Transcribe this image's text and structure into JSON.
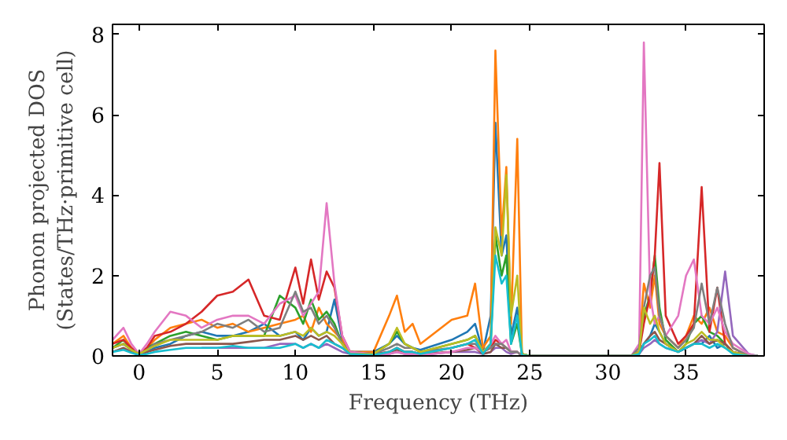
{
  "chart_data": {
    "type": "line",
    "xlabel": "Frequency (THz)",
    "ylabel": "Phonon projected DOS\n(States/THz·primitive cell)",
    "xlim": [
      -1.7,
      40
    ],
    "ylim": [
      0,
      8.25
    ],
    "xticks": [
      0,
      5,
      10,
      15,
      20,
      25,
      30,
      35
    ],
    "yticks": [
      0,
      2,
      4,
      6,
      8
    ],
    "grid": false,
    "x": [
      -1.7,
      -1,
      -0.5,
      0,
      0.5,
      1,
      2,
      3,
      4,
      5,
      6,
      7,
      8,
      9,
      10,
      10.5,
      11,
      11.5,
      12,
      12.5,
      13,
      13.5,
      15,
      16,
      16.5,
      17,
      17.5,
      18,
      20,
      21,
      21.5,
      22,
      22.5,
      22.8,
      23.2,
      23.5,
      23.8,
      24.2,
      24.5,
      25,
      31.5,
      32,
      32.3,
      32.7,
      33,
      33.3,
      33.7,
      34.5,
      35,
      35.5,
      36,
      36.5,
      37,
      37.5,
      38,
      39,
      39.6
    ],
    "series": [
      {
        "color": "#1f77b4",
        "values": [
          0.2,
          0.3,
          0.15,
          0.05,
          0.1,
          0.2,
          0.3,
          0.5,
          0.6,
          0.5,
          0.5,
          0.6,
          0.8,
          0.5,
          0.6,
          0.4,
          0.7,
          0.5,
          0.6,
          1.4,
          0.4,
          0.1,
          0.1,
          0.3,
          0.5,
          0.3,
          0.2,
          0.15,
          0.4,
          0.6,
          0.8,
          0.1,
          1.0,
          5.8,
          2.5,
          3.0,
          0.5,
          1.2,
          0.05,
          0,
          0,
          0.1,
          0.3,
          0.5,
          0.8,
          0.6,
          0.3,
          0.1,
          0.2,
          0.3,
          0.3,
          0.5,
          0.2,
          0.3,
          0.1,
          null,
          null
        ]
      },
      {
        "color": "#ff7f0e",
        "values": [
          0.3,
          0.5,
          0.2,
          0.05,
          0.2,
          0.4,
          0.7,
          0.8,
          0.9,
          0.7,
          0.8,
          0.6,
          0.7,
          0.8,
          0.9,
          1.0,
          0.6,
          1.2,
          0.8,
          0.6,
          0.4,
          0.1,
          0.1,
          1.0,
          1.5,
          0.6,
          0.8,
          0.3,
          0.9,
          1.0,
          1.8,
          0.2,
          0.5,
          7.6,
          3.0,
          4.7,
          0.8,
          5.4,
          0.05,
          0,
          0,
          0.2,
          1.8,
          1.2,
          2.0,
          0.8,
          0.5,
          0.2,
          0.5,
          1.0,
          0.8,
          1.2,
          0.6,
          0.5,
          0.2,
          0,
          0
        ]
      },
      {
        "color": "#2ca02c",
        "values": [
          0.2,
          0.4,
          0.15,
          0.05,
          0.2,
          0.3,
          0.5,
          0.6,
          0.5,
          0.4,
          0.5,
          0.5,
          0.5,
          1.5,
          1.2,
          0.8,
          1.4,
          0.9,
          1.1,
          0.8,
          0.3,
          0.1,
          0.05,
          0.3,
          0.6,
          0.3,
          0.2,
          0.1,
          0.3,
          0.4,
          0.5,
          0.1,
          0.3,
          3.0,
          2.0,
          2.5,
          0.3,
          0.8,
          0.05,
          0,
          0,
          0.1,
          1.0,
          1.5,
          2.5,
          1.2,
          0.4,
          0.1,
          0.3,
          0.8,
          1.0,
          0.6,
          0.5,
          0.3,
          0.1,
          0,
          0
        ]
      },
      {
        "color": "#d62728",
        "values": [
          0.3,
          0.4,
          0.2,
          0.05,
          0.2,
          0.5,
          0.6,
          0.8,
          1.1,
          1.5,
          1.6,
          1.9,
          1.0,
          0.9,
          2.2,
          1.3,
          2.4,
          1.4,
          2.1,
          1.7,
          0.5,
          0.1,
          0.05,
          0.1,
          0.2,
          0.1,
          0.1,
          0.05,
          0.2,
          0.3,
          0.2,
          0.1,
          0.2,
          0.4,
          0.3,
          0.2,
          0.1,
          0.1,
          0,
          0,
          0,
          0.1,
          0.8,
          1.5,
          2.5,
          4.8,
          1.0,
          0.3,
          0.5,
          0.8,
          4.2,
          0.6,
          1.7,
          0.3,
          0.1,
          0,
          0
        ]
      },
      {
        "color": "#9467bd",
        "values": [
          null,
          null,
          null,
          null,
          null,
          null,
          null,
          null,
          0.2,
          0.2,
          0.2,
          0.2,
          0.2,
          0.3,
          0.3,
          0.2,
          0.3,
          0.2,
          0.3,
          0.2,
          0.1,
          0.05,
          0.02,
          0.05,
          0.1,
          0.05,
          0.05,
          0.02,
          0.1,
          0.1,
          0.1,
          0.05,
          0.1,
          0.2,
          0.2,
          0.1,
          0.05,
          0.1,
          0,
          0,
          0,
          0.05,
          0.2,
          0.3,
          0.4,
          0.3,
          0.2,
          0.1,
          0.2,
          0.3,
          0.4,
          0.3,
          0.6,
          2.1,
          0.5,
          0.05,
          0
        ]
      },
      {
        "color": "#8c564b",
        "values": [
          0.1,
          0.2,
          0.1,
          0.02,
          0.1,
          0.15,
          0.25,
          0.3,
          0.3,
          0.3,
          0.3,
          0.35,
          0.4,
          0.4,
          0.5,
          0.4,
          0.5,
          0.4,
          0.5,
          0.3,
          0.2,
          0.05,
          0.02,
          0.1,
          0.15,
          0.1,
          0.1,
          0.05,
          0.1,
          0.15,
          0.2,
          0.05,
          0.1,
          0.3,
          0.2,
          0.2,
          0.1,
          0.1,
          0,
          0,
          0,
          0.05,
          0.3,
          0.5,
          0.6,
          0.4,
          0.3,
          0.1,
          0.2,
          0.3,
          0.5,
          0.3,
          0.4,
          0.3,
          0.1,
          0,
          0
        ]
      },
      {
        "color": "#e377c2",
        "values": [
          0.4,
          0.7,
          0.3,
          0.05,
          0.3,
          0.6,
          1.1,
          1.0,
          0.7,
          0.9,
          1.0,
          1.0,
          0.8,
          1.3,
          1.5,
          1.0,
          1.3,
          1.6,
          3.8,
          1.8,
          0.5,
          0.1,
          0.05,
          0.05,
          0.1,
          0.05,
          0.05,
          0.02,
          0.1,
          0.2,
          0.2,
          0.1,
          0.3,
          0.5,
          0.3,
          0.4,
          0.1,
          0.1,
          0,
          0,
          0,
          0.3,
          7.8,
          1.5,
          0.8,
          1.0,
          0.5,
          1.0,
          2.0,
          2.4,
          1.0,
          0.8,
          1.2,
          0.6,
          0.3,
          0.05,
          0
        ]
      },
      {
        "color": "#7f7f7f",
        "values": [
          0.2,
          0.3,
          0.15,
          0.05,
          0.15,
          0.3,
          0.4,
          0.5,
          0.6,
          0.8,
          0.7,
          0.9,
          0.6,
          0.7,
          1.6,
          1.1,
          1.2,
          0.8,
          1.0,
          0.7,
          0.3,
          0.05,
          0.05,
          0.2,
          0.3,
          0.2,
          0.2,
          0.1,
          0.2,
          0.3,
          0.3,
          0.1,
          0.2,
          0.3,
          0.3,
          0.2,
          0.1,
          0.1,
          0,
          0,
          0,
          0.2,
          1.2,
          2.0,
          2.2,
          1.0,
          0.5,
          0.2,
          0.4,
          0.7,
          1.8,
          0.8,
          1.7,
          0.8,
          0.2,
          0,
          0
        ]
      },
      {
        "color": "#bcbd22",
        "values": [
          0.2,
          0.3,
          0.15,
          0.05,
          0.15,
          0.25,
          0.4,
          0.4,
          0.4,
          0.4,
          0.5,
          0.5,
          0.5,
          0.5,
          0.6,
          0.5,
          0.7,
          0.5,
          0.6,
          0.5,
          0.3,
          0.05,
          0.05,
          0.3,
          0.7,
          0.3,
          0.2,
          0.1,
          0.3,
          0.4,
          0.5,
          0.1,
          0.3,
          3.2,
          2.5,
          4.5,
          1.0,
          2.0,
          0.05,
          0,
          0,
          0.1,
          1.2,
          0.8,
          1.0,
          0.6,
          0.3,
          0.1,
          0.3,
          0.4,
          0.6,
          0.4,
          0.4,
          0.2,
          0.1,
          0,
          0
        ]
      },
      {
        "color": "#17becf",
        "values": [
          0.1,
          0.15,
          0.08,
          0.02,
          0.05,
          0.1,
          0.15,
          0.2,
          0.2,
          0.2,
          0.25,
          0.2,
          0.2,
          0.2,
          0.3,
          0.2,
          0.3,
          0.2,
          0.4,
          0.3,
          0.2,
          0.05,
          0.02,
          0.1,
          0.2,
          0.1,
          0.1,
          0.05,
          0.2,
          0.3,
          0.4,
          0.05,
          0.3,
          2.5,
          1.8,
          2.0,
          0.3,
          1.0,
          0.02,
          0,
          0,
          0.05,
          0.3,
          0.4,
          0.5,
          0.3,
          0.2,
          0.1,
          0.2,
          0.3,
          0.3,
          0.2,
          0.3,
          0.2,
          0.05,
          0,
          0
        ]
      }
    ]
  }
}
